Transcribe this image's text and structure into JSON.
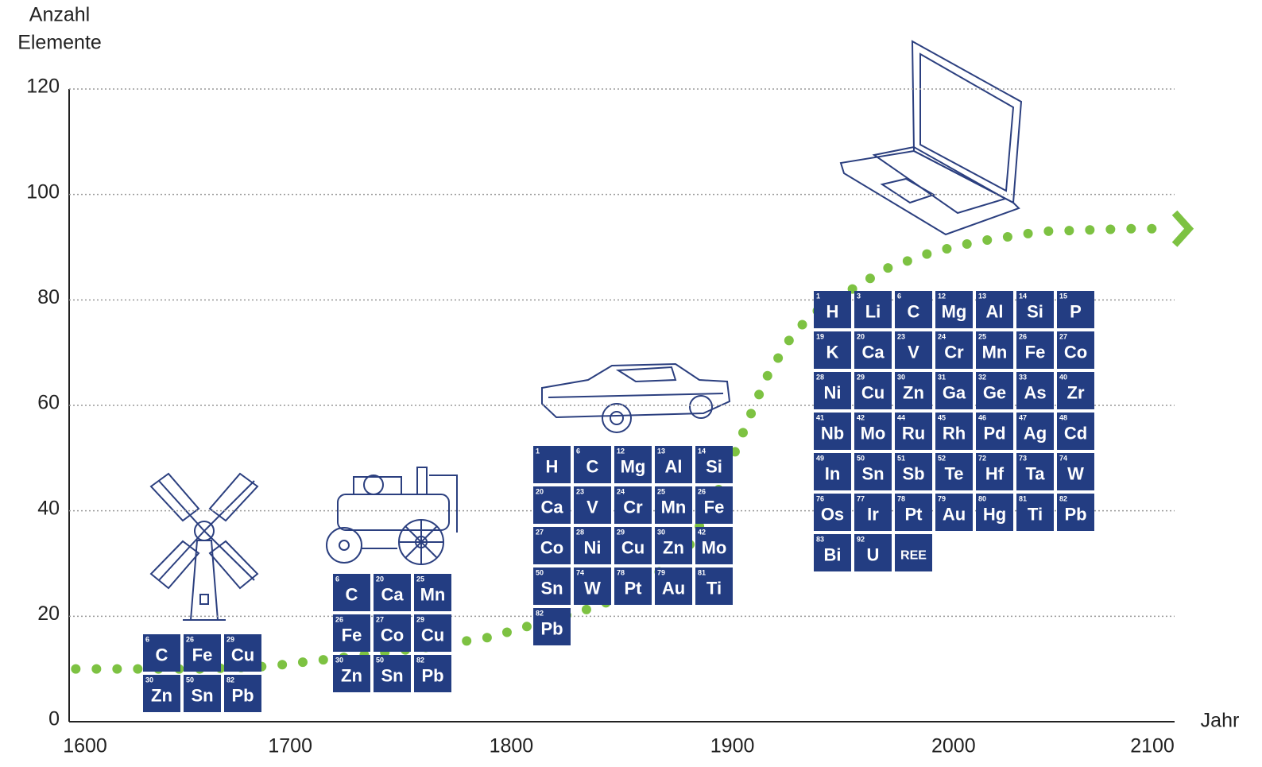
{
  "chart_data": {
    "type": "line",
    "ylabel": [
      "Anzahl",
      "Elemente"
    ],
    "xlabel": "Jahr",
    "x": [
      1603,
      1630,
      1660,
      1690,
      1720,
      1760,
      1790,
      1815,
      1840,
      1860,
      1880,
      1895,
      1905,
      1915,
      1925,
      1935,
      1950,
      1970,
      1990,
      2010,
      2040,
      2080,
      2095
    ],
    "values": [
      10,
      10,
      10,
      10.5,
      12,
      14,
      16,
      19,
      22,
      26,
      33,
      45,
      55,
      65,
      72,
      77,
      81,
      86,
      89,
      91,
      93,
      93.5,
      93.5
    ],
    "color": "#7dc242",
    "xlim": [
      1600,
      2100
    ],
    "xticks": [
      1600,
      1700,
      1800,
      1900,
      2000,
      2100
    ],
    "ylim": [
      0,
      120
    ],
    "yticks": [
      0,
      20,
      40,
      60,
      80,
      100,
      120
    ],
    "grid": true,
    "tile_color": "#233d82",
    "element_groups": [
      {
        "tiles": [
          {
            "number": 6,
            "symbol": "C"
          },
          {
            "number": 26,
            "symbol": "Fe"
          },
          {
            "number": 29,
            "symbol": "Cu"
          },
          {
            "number": 30,
            "symbol": "Zn"
          },
          {
            "number": 50,
            "symbol": "Sn"
          },
          {
            "number": 82,
            "symbol": "Pb"
          }
        ]
      },
      {
        "tiles": [
          {
            "number": 6,
            "symbol": "C"
          },
          {
            "number": 20,
            "symbol": "Ca"
          },
          {
            "number": 25,
            "symbol": "Mn"
          },
          {
            "number": 26,
            "symbol": "Fe"
          },
          {
            "number": 27,
            "symbol": "Co"
          },
          {
            "number": 29,
            "symbol": "Cu"
          },
          {
            "number": 30,
            "symbol": "Zn"
          },
          {
            "number": 50,
            "symbol": "Sn"
          },
          {
            "number": 82,
            "symbol": "Pb"
          }
        ]
      },
      {
        "tiles": [
          {
            "number": 1,
            "symbol": "H"
          },
          {
            "number": 6,
            "symbol": "C"
          },
          {
            "number": 12,
            "symbol": "Mg"
          },
          {
            "number": 13,
            "symbol": "Al"
          },
          {
            "number": 14,
            "symbol": "Si"
          },
          {
            "number": 20,
            "symbol": "Ca"
          },
          {
            "number": 23,
            "symbol": "V"
          },
          {
            "number": 24,
            "symbol": "Cr"
          },
          {
            "number": 25,
            "symbol": "Mn"
          },
          {
            "number": 26,
            "symbol": "Fe"
          },
          {
            "number": 27,
            "symbol": "Co"
          },
          {
            "number": 28,
            "symbol": "Ni"
          },
          {
            "number": 29,
            "symbol": "Cu"
          },
          {
            "number": 30,
            "symbol": "Zn"
          },
          {
            "number": 42,
            "symbol": "Mo"
          },
          {
            "number": 50,
            "symbol": "Sn"
          },
          {
            "number": 74,
            "symbol": "W"
          },
          {
            "number": 78,
            "symbol": "Pt"
          },
          {
            "number": 79,
            "symbol": "Au"
          },
          {
            "number": 81,
            "symbol": "Ti"
          },
          {
            "number": 82,
            "symbol": "Pb"
          }
        ]
      },
      {
        "tiles": [
          {
            "number": 1,
            "symbol": "H"
          },
          {
            "number": 3,
            "symbol": "Li"
          },
          {
            "number": 6,
            "symbol": "C"
          },
          {
            "number": 12,
            "symbol": "Mg"
          },
          {
            "number": 13,
            "symbol": "Al"
          },
          {
            "number": 14,
            "symbol": "Si"
          },
          {
            "number": 15,
            "symbol": "P"
          },
          {
            "number": 19,
            "symbol": "K"
          },
          {
            "number": 20,
            "symbol": "Ca"
          },
          {
            "number": 23,
            "symbol": "V"
          },
          {
            "number": 24,
            "symbol": "Cr"
          },
          {
            "number": 25,
            "symbol": "Mn"
          },
          {
            "number": 26,
            "symbol": "Fe"
          },
          {
            "number": 27,
            "symbol": "Co"
          },
          {
            "number": 28,
            "symbol": "Ni"
          },
          {
            "number": 29,
            "symbol": "Cu"
          },
          {
            "number": 30,
            "symbol": "Zn"
          },
          {
            "number": 31,
            "symbol": "Ga"
          },
          {
            "number": 32,
            "symbol": "Ge"
          },
          {
            "number": 33,
            "symbol": "As"
          },
          {
            "number": 40,
            "symbol": "Zr"
          },
          {
            "number": 41,
            "symbol": "Nb"
          },
          {
            "number": 42,
            "symbol": "Mo"
          },
          {
            "number": 44,
            "symbol": "Ru"
          },
          {
            "number": 45,
            "symbol": "Rh"
          },
          {
            "number": 46,
            "symbol": "Pd"
          },
          {
            "number": 47,
            "symbol": "Ag"
          },
          {
            "number": 48,
            "symbol": "Cd"
          },
          {
            "number": 49,
            "symbol": "In"
          },
          {
            "number": 50,
            "symbol": "Sn"
          },
          {
            "number": 51,
            "symbol": "Sb"
          },
          {
            "number": 52,
            "symbol": "Te"
          },
          {
            "number": 72,
            "symbol": "Hf"
          },
          {
            "number": 73,
            "symbol": "Ta"
          },
          {
            "number": 74,
            "symbol": "W"
          },
          {
            "number": 76,
            "symbol": "Os"
          },
          {
            "number": 77,
            "symbol": "Ir"
          },
          {
            "number": 78,
            "symbol": "Pt"
          },
          {
            "number": 79,
            "symbol": "Au"
          },
          {
            "number": 80,
            "symbol": "Hg"
          },
          {
            "number": 81,
            "symbol": "Ti"
          },
          {
            "number": 82,
            "symbol": "Pb"
          },
          {
            "number": 83,
            "symbol": "Bi"
          },
          {
            "number": 92,
            "symbol": "U"
          },
          {
            "symbol": "REE"
          }
        ]
      }
    ]
  }
}
